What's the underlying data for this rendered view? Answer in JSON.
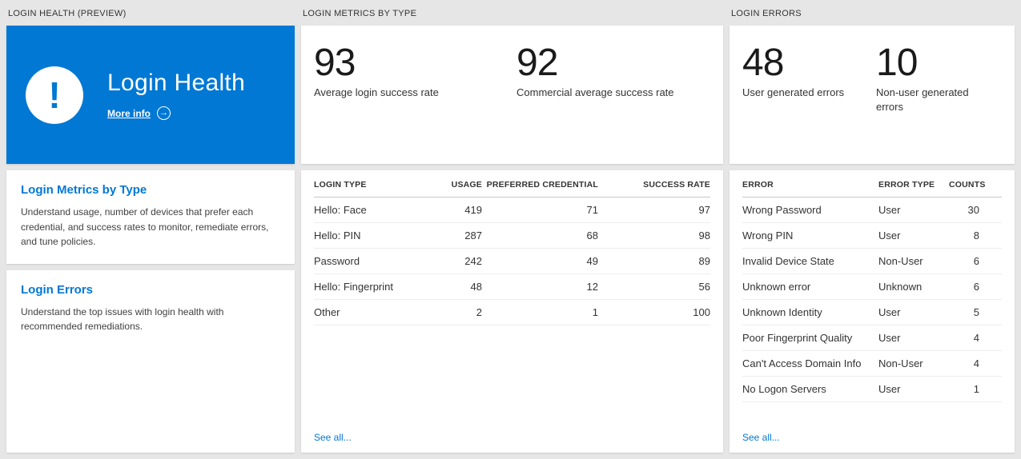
{
  "colors": {
    "accent": "#0078d4",
    "hero_blue": "#0078d4",
    "background": "#e6e6e6"
  },
  "health": {
    "header": "LOGIN HEALTH (PREVIEW)",
    "hero": {
      "title": "Login Health",
      "more_info": "More info",
      "arrow": "→",
      "exclamation": "!"
    },
    "sections": [
      {
        "title": "Login Metrics by Type",
        "description": "Understand usage, number of devices that prefer each credential, and success rates to monitor, remediate errors, and tune policies."
      },
      {
        "title": "Login Errors",
        "description": "Understand the top issues with login health with recommended remediations."
      }
    ]
  },
  "metrics": {
    "header": "LOGIN METRICS BY TYPE",
    "stats": [
      {
        "value": "93",
        "label": "Average login success rate"
      },
      {
        "value": "92",
        "label": "Commercial average success rate"
      }
    ],
    "table": {
      "columns": [
        "LOGIN TYPE",
        "USAGE",
        "PREFERRED CREDENTIAL",
        "SUCCESS RATE"
      ],
      "rows": [
        [
          "Hello: Face",
          "419",
          "71",
          "97"
        ],
        [
          "Hello: PIN",
          "287",
          "68",
          "98"
        ],
        [
          "Password",
          "242",
          "49",
          "89"
        ],
        [
          "Hello: Fingerprint",
          "48",
          "12",
          "56"
        ],
        [
          "Other",
          "2",
          "1",
          "100"
        ]
      ]
    },
    "see_all": "See all..."
  },
  "errors": {
    "header": "LOGIN ERRORS",
    "stats": [
      {
        "value": "48",
        "label": "User generated errors"
      },
      {
        "value": "10",
        "label": "Non-user generated errors"
      }
    ],
    "table": {
      "columns": [
        "ERROR",
        "ERROR TYPE",
        "COUNTS"
      ],
      "rows": [
        [
          "Wrong Password",
          "User",
          "30"
        ],
        [
          "Wrong PIN",
          "User",
          "8"
        ],
        [
          "Invalid Device State",
          "Non-User",
          "6"
        ],
        [
          "Unknown error",
          "Unknown",
          "6"
        ],
        [
          "Unknown Identity",
          "User",
          "5"
        ],
        [
          "Poor Fingerprint Quality",
          "User",
          "4"
        ],
        [
          "Can't Access Domain Info",
          "Non-User",
          "4"
        ],
        [
          "No Logon Servers",
          "User",
          "1"
        ]
      ]
    },
    "see_all": "See all..."
  }
}
